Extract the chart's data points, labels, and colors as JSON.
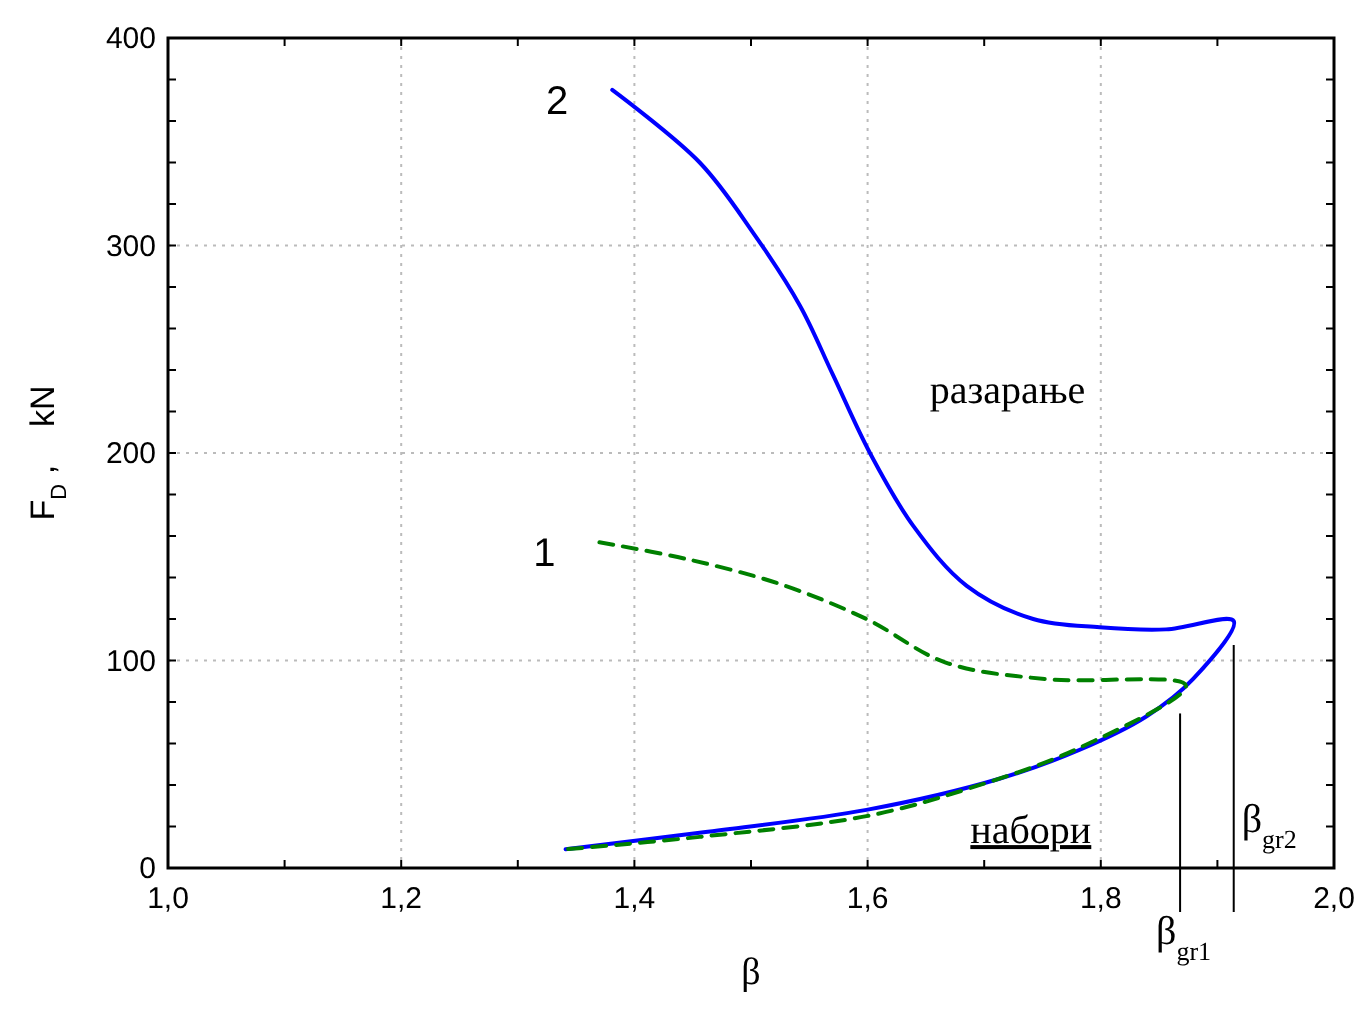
{
  "chart_data": {
    "type": "line",
    "xlabel": "β",
    "ylabel": "F$_{D}$ ,    kN",
    "xlim": [
      1.0,
      2.0
    ],
    "ylim": [
      0,
      400
    ],
    "xticks": [
      {
        "value": 1.0,
        "label": "1,0"
      },
      {
        "value": 1.1,
        "label": null
      },
      {
        "value": 1.2,
        "label": "1,2"
      },
      {
        "value": 1.3,
        "label": null
      },
      {
        "value": 1.4,
        "label": "1,4"
      },
      {
        "value": 1.5,
        "label": null
      },
      {
        "value": 1.6,
        "label": "1,6"
      },
      {
        "value": 1.7,
        "label": null
      },
      {
        "value": 1.8,
        "label": "1,8"
      },
      {
        "value": 1.9,
        "label": null
      },
      {
        "value": 2.0,
        "label": "2,0"
      }
    ],
    "yticks": [
      0,
      {
        "value": 20,
        "label": null
      },
      {
        "value": 40,
        "label": null
      },
      {
        "value": 60,
        "label": null
      },
      {
        "value": 80,
        "label": null
      },
      100,
      {
        "value": 120,
        "label": null
      },
      {
        "value": 140,
        "label": null
      },
      {
        "value": 160,
        "label": null
      },
      {
        "value": 180,
        "label": null
      },
      200,
      {
        "value": 220,
        "label": null
      },
      {
        "value": 240,
        "label": null
      },
      {
        "value": 260,
        "label": null
      },
      {
        "value": 280,
        "label": null
      },
      300,
      {
        "value": 320,
        "label": null
      },
      {
        "value": 340,
        "label": null
      },
      {
        "value": 360,
        "label": null
      },
      {
        "value": 380,
        "label": null
      },
      400
    ],
    "grid": true,
    "series": [
      {
        "color": "#0000ff",
        "line_style": "solid",
        "x": [
          1.381,
          1.456,
          1.502,
          1.542,
          1.57,
          1.602,
          1.639,
          1.685,
          1.742,
          1.799,
          1.856,
          1.914,
          1.879,
          1.839,
          1.782,
          1.713,
          1.599,
          1.456,
          1.341
        ],
        "values": [
          375,
          340,
          306,
          271,
          238,
          200,
          165,
          136,
          120,
          116,
          115,
          119,
          91,
          73,
          57,
          43,
          28,
          17,
          9
        ]
      },
      {
        "color": "#008000",
        "line_style": "dashed",
        "x": [
          1.37,
          1.444,
          1.524,
          1.599,
          1.667,
          1.753,
          1.873,
          1.782,
          1.685,
          1.599,
          1.456,
          1.341
        ],
        "values": [
          157,
          149,
          137,
          120,
          99,
          91,
          88,
          58,
          38,
          25,
          15,
          9
        ]
      }
    ],
    "ref_lines": [
      {
        "axis": "x",
        "value": 1.868,
        "label": "β$_{gr1}$",
        "color": "#000000"
      },
      {
        "axis": "x",
        "value": 1.914,
        "label": "β$_{gr2}$",
        "color": "#000000"
      }
    ],
    "annotations": [
      "разарање",
      "набори",
      {
        "text": "2",
        "x": 1.381,
        "y": 375
      },
      {
        "text": "1",
        "x": 1.37,
        "y": 157
      }
    ]
  }
}
